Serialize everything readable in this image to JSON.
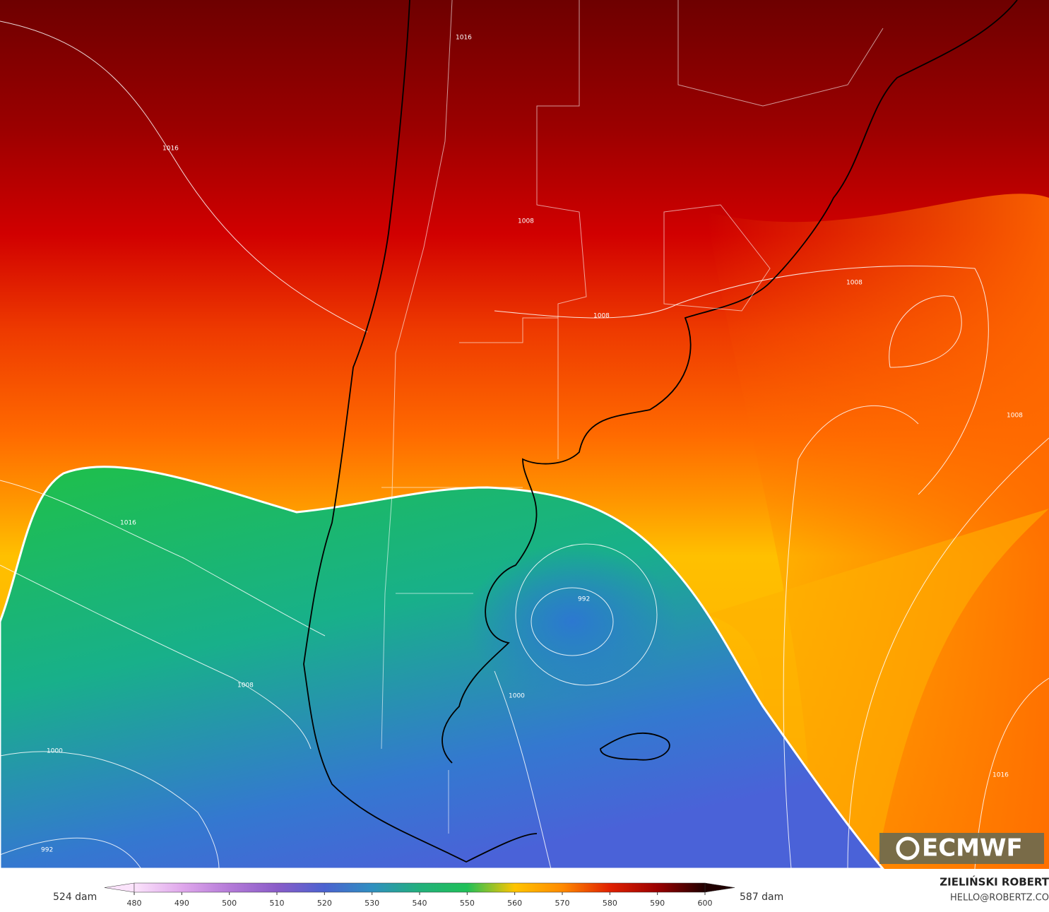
{
  "map": {
    "isobar_labels": [
      1016,
      1016,
      1008,
      1008,
      1008,
      1008,
      1016,
      1008,
      1000,
      992,
      992,
      1000,
      1016
    ]
  },
  "logo": "ECMWF",
  "colorbar": {
    "min_label": "524 dam",
    "max_label": "587 dam",
    "range": [
      480,
      600
    ],
    "ticks": [
      480,
      490,
      500,
      510,
      520,
      530,
      540,
      550,
      560,
      570,
      580,
      590,
      600
    ],
    "colors": [
      "#fbe3fb",
      "#e0a8ec",
      "#b47ad8",
      "#8a5cc8",
      "#4b62d0",
      "#2f8fc0",
      "#22b07c",
      "#20c058",
      "#ffc400",
      "#ff8a00",
      "#e02000",
      "#9a0000",
      "#200000"
    ]
  },
  "credits": {
    "author": "ZIELIŃSKI ROBERT",
    "email": "HELLO@ROBERTZ.CO"
  }
}
